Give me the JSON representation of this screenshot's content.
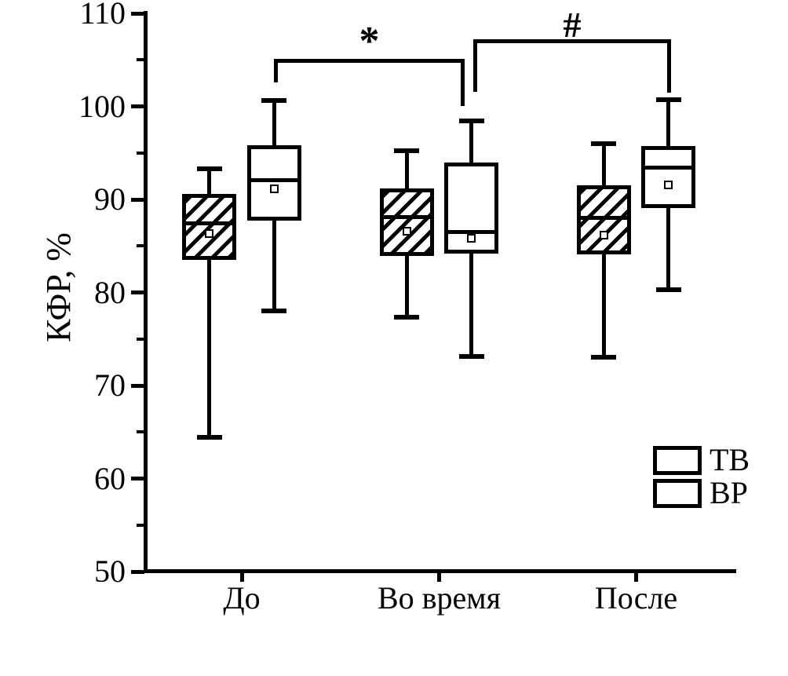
{
  "chart_data": {
    "type": "boxplot",
    "title": "",
    "xlabel": "",
    "ylabel": "КФР, %",
    "categories": [
      "До",
      "Во время",
      "После"
    ],
    "y_axis": {
      "min": 50,
      "max": 110,
      "major_ticks": [
        110,
        100,
        90,
        80,
        70,
        60,
        50
      ],
      "minor_ticks": [
        105,
        95,
        85,
        75,
        65,
        55
      ],
      "unit": "%"
    },
    "series": [
      {
        "name": "ТВ",
        "style": "hatched",
        "boxes": [
          {
            "category": "До",
            "whisker_low": 64.4,
            "q1": 83.5,
            "median": 87.4,
            "q3": 90.6,
            "whisker_high": 93.3,
            "mean": 86.3
          },
          {
            "category": "Во время",
            "whisker_low": 77.3,
            "q1": 83.9,
            "median": 88.1,
            "q3": 91.2,
            "whisker_high": 95.2,
            "mean": 86.6
          },
          {
            "category": "После",
            "whisker_low": 73.0,
            "q1": 84.1,
            "median": 88.0,
            "q3": 91.5,
            "whisker_high": 96.0,
            "mean": 86.2
          }
        ]
      },
      {
        "name": "ВР",
        "style": "plain",
        "boxes": [
          {
            "category": "До",
            "whisker_low": 78.0,
            "q1": 87.7,
            "median": 92.1,
            "q3": 95.8,
            "whisker_high": 100.6,
            "mean": 91.1
          },
          {
            "category": "Во время",
            "whisker_low": 73.1,
            "q1": 84.2,
            "median": 86.5,
            "q3": 94.0,
            "whisker_high": 98.4,
            "mean": 85.8
          },
          {
            "category": "После",
            "whisker_low": 80.3,
            "q1": 89.1,
            "median": 93.4,
            "q3": 95.7,
            "whisker_high": 100.7,
            "mean": 91.6
          }
        ]
      }
    ],
    "significance": [
      {
        "label": "*",
        "from": {
          "category": "До",
          "series": "ВР"
        },
        "to": {
          "category": "Во время",
          "series": "ВР"
        }
      },
      {
        "label": "#",
        "from": {
          "category": "Во время",
          "series": "ВР"
        },
        "to": {
          "category": "После",
          "series": "ВР"
        }
      }
    ],
    "legend": {
      "position": "bottom-right",
      "items": [
        {
          "label": "ТВ",
          "swatch": "hatched"
        },
        {
          "label": "ВР",
          "swatch": "plain"
        }
      ]
    }
  },
  "colors": {
    "stroke": "#000000",
    "background": "#ffffff",
    "box_fill": "#ffffff"
  }
}
